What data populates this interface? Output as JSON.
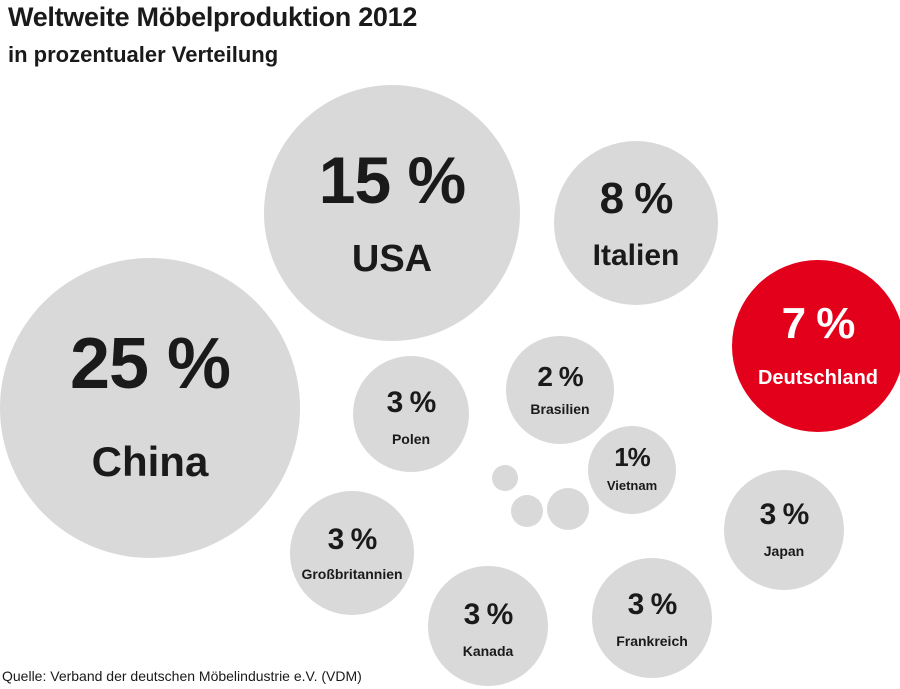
{
  "title": "Weltweite Möbelproduktion 2012",
  "subtitle": "in prozentualer Verteilung",
  "source": "Quelle: Verband der deutschen Möbelindustrie e.V. (VDM)",
  "colors": {
    "bubble": "#d9d9d9",
    "highlight": "#e2001a",
    "text": "#1a1a1a",
    "highlight_text": "#ffffff"
  },
  "chart_data": {
    "type": "bubble",
    "unit": "%",
    "categories": [
      "China",
      "USA",
      "Italien",
      "Deutschland",
      "Brasilien",
      "Polen",
      "Vietnam",
      "Japan",
      "Großbritannien",
      "Kanada",
      "Frankreich"
    ],
    "values": [
      25,
      15,
      8,
      7,
      2,
      3,
      1,
      3,
      3,
      3,
      3
    ],
    "labels": [
      "25 %",
      "15 %",
      "8 %",
      "7 %",
      "2 %",
      "3 %",
      "1%",
      "3 %",
      "3 %",
      "3 %",
      "3 %"
    ],
    "highlight": "Deutschland",
    "decorative_bubbles": 3
  }
}
